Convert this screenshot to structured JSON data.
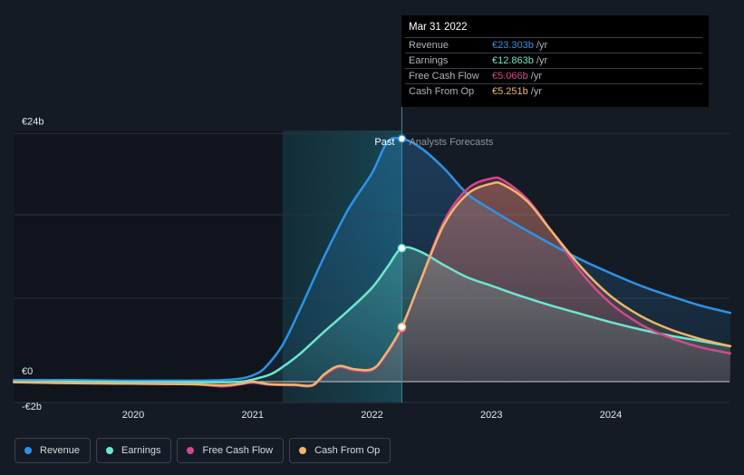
{
  "chart_data": {
    "type": "line",
    "x_tick_labels": [
      "2020",
      "2021",
      "2022",
      "2023",
      "2024"
    ],
    "y_tick_labels": [
      "€24b",
      "€0",
      "-€2b"
    ],
    "ylim": [
      -2,
      24
    ],
    "past_label": "Past",
    "forecast_label": "Analysts Forecasts",
    "series": [
      {
        "name": "Revenue",
        "color": "#2e93e6",
        "points": [
          [
            2019.0,
            0.15
          ],
          [
            2019.5,
            0.15
          ],
          [
            2020.0,
            0.1
          ],
          [
            2020.5,
            0.1
          ],
          [
            2020.75,
            0.15
          ],
          [
            2020.9,
            0.3
          ],
          [
            2021.0,
            0.6
          ],
          [
            2021.1,
            1.3
          ],
          [
            2021.25,
            3.5
          ],
          [
            2021.4,
            7.0
          ],
          [
            2021.6,
            12.0
          ],
          [
            2021.8,
            16.5
          ],
          [
            2022.0,
            20.0
          ],
          [
            2022.13,
            23.0
          ],
          [
            2022.25,
            23.3
          ],
          [
            2022.4,
            22.5
          ],
          [
            2022.6,
            20.5
          ],
          [
            2022.8,
            18.0
          ],
          [
            2023.0,
            16.5
          ],
          [
            2023.25,
            14.8
          ],
          [
            2023.5,
            13.2
          ],
          [
            2023.75,
            11.7
          ],
          [
            2024.0,
            10.4
          ],
          [
            2024.25,
            9.2
          ],
          [
            2024.5,
            8.2
          ],
          [
            2024.75,
            7.3
          ],
          [
            2025.0,
            6.6
          ]
        ]
      },
      {
        "name": "Earnings",
        "color": "#6ee6cf",
        "points": [
          [
            2019.0,
            0.0
          ],
          [
            2019.5,
            0.0
          ],
          [
            2020.0,
            -0.05
          ],
          [
            2020.5,
            -0.05
          ],
          [
            2020.75,
            -0.05
          ],
          [
            2020.9,
            0.0
          ],
          [
            2021.0,
            0.2
          ],
          [
            2021.15,
            0.7
          ],
          [
            2021.25,
            1.4
          ],
          [
            2021.4,
            2.7
          ],
          [
            2021.6,
            4.8
          ],
          [
            2021.8,
            6.8
          ],
          [
            2022.0,
            9.0
          ],
          [
            2022.13,
            11.0
          ],
          [
            2022.25,
            12.8
          ],
          [
            2022.4,
            12.5
          ],
          [
            2022.6,
            11.2
          ],
          [
            2022.8,
            10.0
          ],
          [
            2023.0,
            9.2
          ],
          [
            2023.25,
            8.2
          ],
          [
            2023.5,
            7.3
          ],
          [
            2023.75,
            6.5
          ],
          [
            2024.0,
            5.7
          ],
          [
            2024.25,
            5.0
          ],
          [
            2024.5,
            4.4
          ],
          [
            2024.75,
            3.9
          ],
          [
            2025.0,
            3.4
          ]
        ]
      },
      {
        "name": "Free Cash Flow",
        "color": "#d4478f",
        "points": [
          [
            2019.0,
            -0.05
          ],
          [
            2019.5,
            -0.15
          ],
          [
            2020.0,
            -0.2
          ],
          [
            2020.5,
            -0.25
          ],
          [
            2020.75,
            -0.45
          ],
          [
            2020.9,
            -0.25
          ],
          [
            2021.0,
            -0.1
          ],
          [
            2021.15,
            -0.3
          ],
          [
            2021.35,
            -0.35
          ],
          [
            2021.5,
            -0.4
          ],
          [
            2021.6,
            0.6
          ],
          [
            2021.72,
            1.4
          ],
          [
            2021.85,
            1.1
          ],
          [
            2022.0,
            1.1
          ],
          [
            2022.1,
            2.3
          ],
          [
            2022.25,
            5.1
          ],
          [
            2022.4,
            9.5
          ],
          [
            2022.6,
            15.3
          ],
          [
            2022.8,
            18.5
          ],
          [
            2023.0,
            19.5
          ],
          [
            2023.1,
            19.3
          ],
          [
            2023.3,
            17.5
          ],
          [
            2023.5,
            14.5
          ],
          [
            2023.75,
            10.5
          ],
          [
            2024.0,
            7.5
          ],
          [
            2024.25,
            5.5
          ],
          [
            2024.5,
            4.2
          ],
          [
            2024.75,
            3.3
          ],
          [
            2025.0,
            2.7
          ]
        ]
      },
      {
        "name": "Cash From Op",
        "color": "#f0b66b",
        "points": [
          [
            2019.0,
            -0.05
          ],
          [
            2019.5,
            -0.15
          ],
          [
            2020.0,
            -0.2
          ],
          [
            2020.5,
            -0.25
          ],
          [
            2020.75,
            -0.35
          ],
          [
            2020.9,
            -0.2
          ],
          [
            2021.0,
            0.0
          ],
          [
            2021.15,
            -0.25
          ],
          [
            2021.35,
            -0.3
          ],
          [
            2021.5,
            -0.35
          ],
          [
            2021.6,
            0.7
          ],
          [
            2021.72,
            1.5
          ],
          [
            2021.85,
            1.2
          ],
          [
            2022.0,
            1.2
          ],
          [
            2022.1,
            2.4
          ],
          [
            2022.25,
            5.25
          ],
          [
            2022.4,
            9.5
          ],
          [
            2022.6,
            15.0
          ],
          [
            2022.8,
            18.0
          ],
          [
            2023.0,
            19.0
          ],
          [
            2023.1,
            18.9
          ],
          [
            2023.3,
            17.3
          ],
          [
            2023.5,
            14.5
          ],
          [
            2023.75,
            11.0
          ],
          [
            2024.0,
            8.2
          ],
          [
            2024.25,
            6.3
          ],
          [
            2024.5,
            5.0
          ],
          [
            2024.75,
            4.1
          ],
          [
            2025.0,
            3.4
          ]
        ]
      }
    ]
  },
  "tooltip": {
    "date": "Mar 31 2022",
    "unit": "/yr",
    "rows": [
      {
        "label": "Revenue",
        "value": "€23.303b",
        "color": "#2e93e6"
      },
      {
        "label": "Earnings",
        "value": "€12.863b",
        "color": "#6ee6cf"
      },
      {
        "label": "Free Cash Flow",
        "value": "€5.066b",
        "color": "#d4478f"
      },
      {
        "label": "Cash From Op",
        "value": "€5.251b",
        "color": "#f0b66b"
      }
    ]
  },
  "legend": [
    {
      "label": "Revenue",
      "color": "#2e93e6"
    },
    {
      "label": "Earnings",
      "color": "#6ee6cf"
    },
    {
      "label": "Free Cash Flow",
      "color": "#d4478f"
    },
    {
      "label": "Cash From Op",
      "color": "#f0b66b"
    }
  ]
}
